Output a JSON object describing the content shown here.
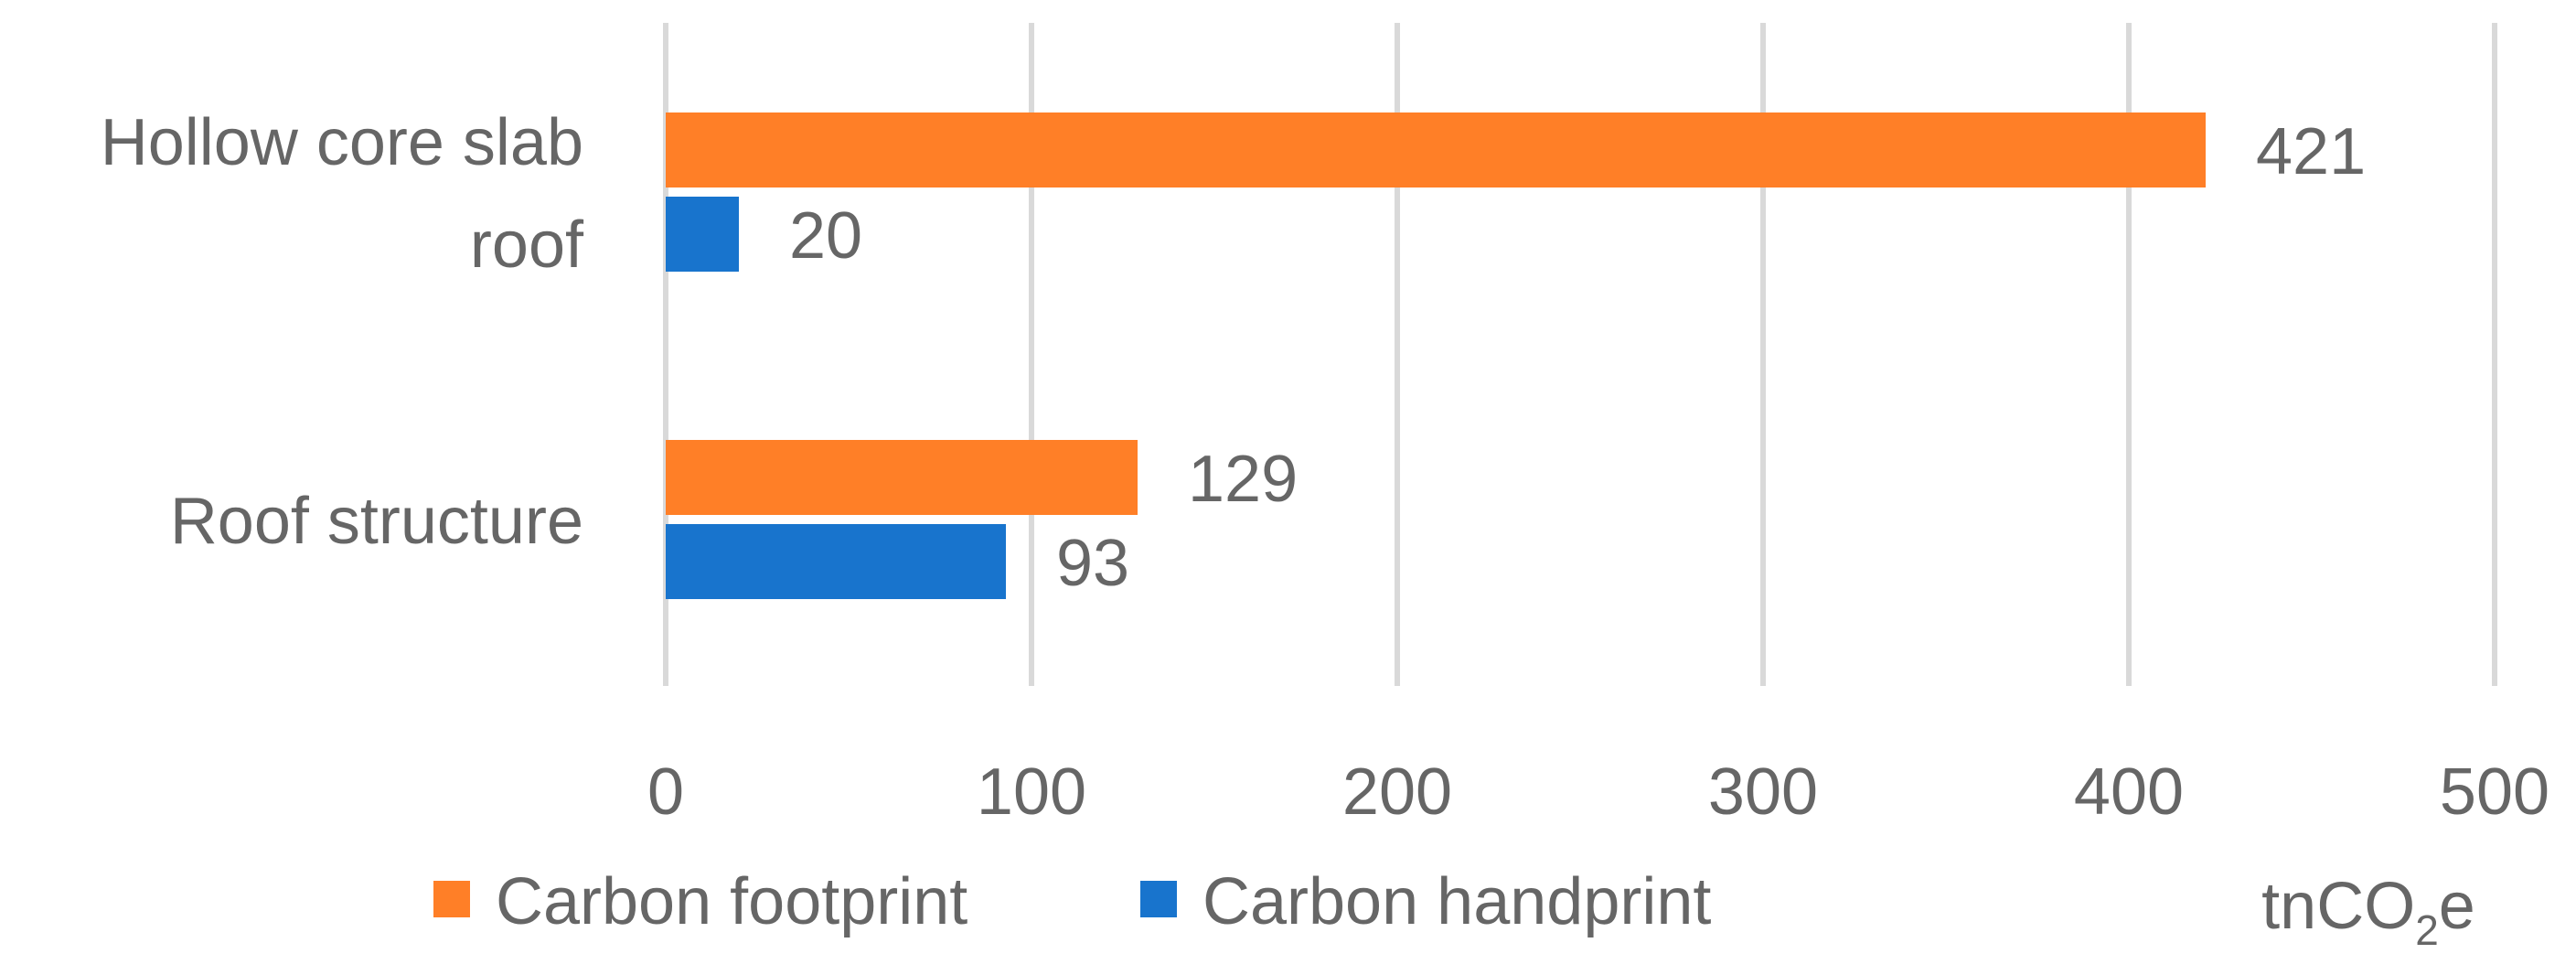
{
  "chart_data": {
    "type": "bar",
    "orientation": "horizontal",
    "categories": [
      "Hollow core slab roof",
      "Roof structure"
    ],
    "category_lines": [
      [
        "Hollow core slab",
        "roof"
      ],
      [
        "Roof structure"
      ]
    ],
    "series": [
      {
        "name": "Carbon footprint",
        "values": [
          421,
          129
        ],
        "color": "#FF7F27"
      },
      {
        "name": "Carbon handprint",
        "values": [
          20,
          93
        ],
        "color": "#1874CD"
      }
    ],
    "xlim": [
      0,
      500
    ],
    "x_ticks": [
      0,
      100,
      200,
      300,
      400,
      500
    ],
    "unit": {
      "base": "tnCO",
      "subscript": "2",
      "suffix": "e"
    },
    "grid": "vertical",
    "legend": "bottom",
    "data_labels": true
  }
}
